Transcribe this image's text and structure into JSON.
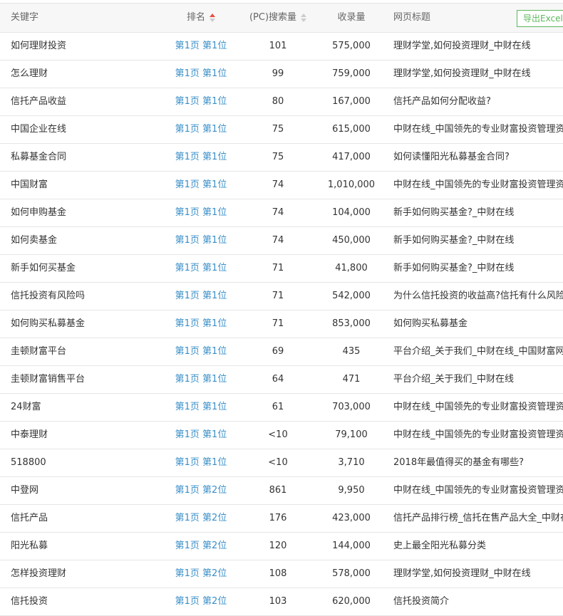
{
  "header": {
    "keyword": "关键字",
    "rank": "排名",
    "search_volume": "(PC)搜索量",
    "indexed": "收录量",
    "page_title": "网页标题",
    "export_label": "导出Excel",
    "sort_active_color": "#e74c3c",
    "link_color": "#3a8fc8"
  },
  "rows": [
    {
      "keyword": "如何理财投资",
      "rank": "第1页 第1位",
      "search": "101",
      "indexed": "575,000",
      "title": "理财学堂,如何投资理财_中财在线"
    },
    {
      "keyword": "怎么理财",
      "rank": "第1页 第1位",
      "search": "99",
      "indexed": "759,000",
      "title": "理财学堂,如何投资理财_中财在线"
    },
    {
      "keyword": "信托产品收益",
      "rank": "第1页 第1位",
      "search": "80",
      "indexed": "167,000",
      "title": "信托产品如何分配收益?"
    },
    {
      "keyword": "中国企业在线",
      "rank": "第1页 第1位",
      "search": "75",
      "indexed": "615,000",
      "title": "中财在线_中国领先的专业财富投资管理资产"
    },
    {
      "keyword": "私募基金合同",
      "rank": "第1页 第1位",
      "search": "75",
      "indexed": "417,000",
      "title": "如何读懂阳光私募基金合同?"
    },
    {
      "keyword": "中国财富",
      "rank": "第1页 第1位",
      "search": "74",
      "indexed": "1,010,000",
      "title": "中财在线_中国领先的专业财富投资管理资产"
    },
    {
      "keyword": "如何申购基金",
      "rank": "第1页 第1位",
      "search": "74",
      "indexed": "104,000",
      "title": "新手如何购买基金?_中财在线"
    },
    {
      "keyword": "如何卖基金",
      "rank": "第1页 第1位",
      "search": "74",
      "indexed": "450,000",
      "title": "新手如何购买基金?_中财在线"
    },
    {
      "keyword": "新手如何买基金",
      "rank": "第1页 第1位",
      "search": "71",
      "indexed": "41,800",
      "title": "新手如何购买基金?_中财在线"
    },
    {
      "keyword": "信托投资有风险吗",
      "rank": "第1页 第1位",
      "search": "71",
      "indexed": "542,000",
      "title": "为什么信托投资的收益高?信托有什么风险?"
    },
    {
      "keyword": "如何购买私募基金",
      "rank": "第1页 第1位",
      "search": "71",
      "indexed": "853,000",
      "title": "如何购买私募基金"
    },
    {
      "keyword": "圭顿财富平台",
      "rank": "第1页 第1位",
      "search": "69",
      "indexed": "435",
      "title": "平台介绍_关于我们_中财在线_中国财富网"
    },
    {
      "keyword": "圭顿财富销售平台",
      "rank": "第1页 第1位",
      "search": "64",
      "indexed": "471",
      "title": "平台介绍_关于我们_中财在线"
    },
    {
      "keyword": "24财富",
      "rank": "第1页 第1位",
      "search": "61",
      "indexed": "703,000",
      "title": "中财在线_中国领先的专业财富投资管理资产"
    },
    {
      "keyword": "中泰理财",
      "rank": "第1页 第1位",
      "search": "<10",
      "indexed": "79,100",
      "title": "中财在线_中国领先的专业财富投资管理资产"
    },
    {
      "keyword": "518800",
      "rank": "第1页 第1位",
      "search": "<10",
      "indexed": "3,710",
      "title": "2018年最值得买的基金有哪些?"
    },
    {
      "keyword": "中登网",
      "rank": "第1页 第2位",
      "search": "861",
      "indexed": "9,950",
      "title": "中财在线_中国领先的专业财富投资管理资产"
    },
    {
      "keyword": "信托产品",
      "rank": "第1页 第2位",
      "search": "176",
      "indexed": "423,000",
      "title": "信托产品排行榜_信托在售产品大全_中财在线"
    },
    {
      "keyword": "阳光私募",
      "rank": "第1页 第2位",
      "search": "120",
      "indexed": "144,000",
      "title": "史上最全阳光私募分类"
    },
    {
      "keyword": "怎样投资理财",
      "rank": "第1页 第2位",
      "search": "108",
      "indexed": "578,000",
      "title": "理财学堂,如何投资理财_中财在线"
    },
    {
      "keyword": "信托投资",
      "rank": "第1页 第2位",
      "search": "103",
      "indexed": "620,000",
      "title": "信托投资简介"
    }
  ]
}
